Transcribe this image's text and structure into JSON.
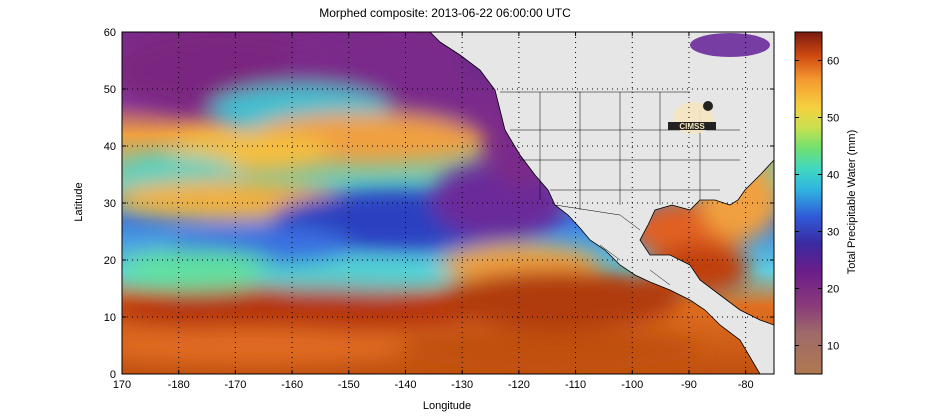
{
  "title": "Morphed composite: 2013-06-22 06:00:00 UTC",
  "xlabel": "Longitude",
  "ylabel": "Latitude",
  "colorbar": {
    "label": "Total Precipitable Water (mm)",
    "range": [
      5,
      65
    ],
    "ticks": [
      "10",
      "20",
      "30",
      "40",
      "50",
      "60"
    ],
    "tick_values": [
      10,
      20,
      30,
      40,
      50,
      60
    ]
  },
  "map": {
    "x_ticks": [
      "170",
      "-180",
      "-170",
      "-160",
      "-150",
      "-140",
      "-130",
      "-120",
      "-110",
      "-100",
      "-90",
      "-80"
    ],
    "y_ticks": [
      "0",
      "10",
      "20",
      "30",
      "40",
      "50",
      "60"
    ],
    "lon_range": [
      170,
      285
    ],
    "lat_range": [
      0,
      60
    ],
    "grid": "dotted",
    "land_color": "#e6e6e6",
    "logo": "CIMSS"
  },
  "colors": {
    "very_low": "#9e6a4e",
    "low": "#7a1e7a",
    "mid_low": "#2a4fd6",
    "mid": "#3fd0d0",
    "mid_high": "#7de05a",
    "high": "#f5c842",
    "very_high": "#b5340f"
  }
}
